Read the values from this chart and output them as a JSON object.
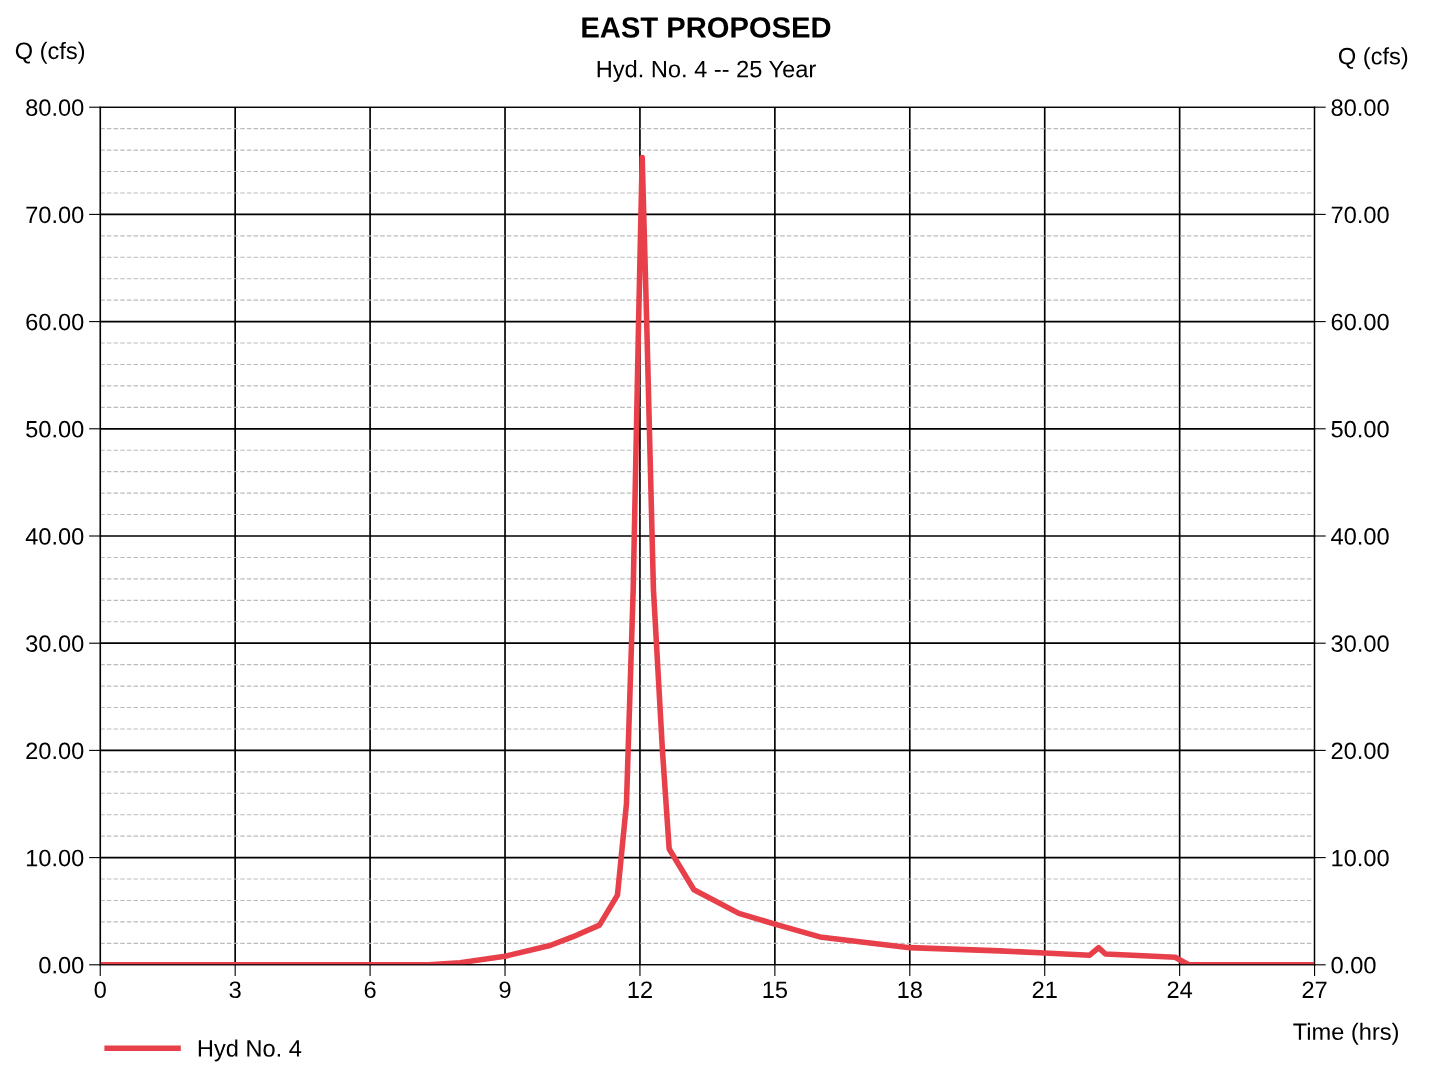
{
  "chart_data": {
    "type": "line",
    "title": "EAST PROPOSED",
    "subtitle": "Hyd. No. 4 -- 25 Year",
    "ylabel": "Q (cfs)",
    "y2label": "Q (cfs)",
    "xlabel": "Time (hrs)",
    "x": [
      0,
      7.3,
      8,
      9,
      10,
      10.5,
      11.1,
      11.5,
      11.7,
      11.85,
      11.97,
      12.05,
      12.15,
      12.3,
      12.5,
      12.65,
      13.2,
      14.2,
      15,
      16,
      18,
      20,
      21,
      22,
      22.2,
      22.35,
      23.9,
      24.2,
      27
    ],
    "series": [
      {
        "name": "Hyd No. 4",
        "color": "#e8404a",
        "values": [
          0,
          0,
          0.2,
          0.8,
          1.8,
          2.6,
          3.7,
          6.5,
          15,
          35,
          60,
          75.3,
          60,
          35,
          20,
          10.8,
          7.0,
          4.8,
          3.8,
          2.6,
          1.6,
          1.3,
          1.1,
          0.9,
          1.6,
          1.0,
          0.7,
          0,
          0
        ]
      }
    ],
    "xlim": [
      0,
      27
    ],
    "xticks": [
      0,
      3,
      6,
      9,
      12,
      15,
      18,
      21,
      24,
      27
    ],
    "ylim": [
      0,
      80
    ],
    "yticks": [
      {
        "value": 0,
        "label": "0.00"
      },
      {
        "value": 10,
        "label": "10.00"
      },
      {
        "value": 20,
        "label": "20.00"
      },
      {
        "value": 30,
        "label": "30.00"
      },
      {
        "value": 40,
        "label": "40.00"
      },
      {
        "value": 50,
        "label": "50.00"
      },
      {
        "value": 60,
        "label": "60.00"
      },
      {
        "value": 70,
        "label": "70.00"
      },
      {
        "value": 80,
        "label": "80.00"
      }
    ],
    "y2lim": [
      0,
      80
    ],
    "y2ticks": [
      {
        "value": 0,
        "label": "0.00"
      },
      {
        "value": 10,
        "label": "10.00"
      },
      {
        "value": 20,
        "label": "20.00"
      },
      {
        "value": 30,
        "label": "30.00"
      },
      {
        "value": 40,
        "label": "40.00"
      },
      {
        "value": 50,
        "label": "50.00"
      },
      {
        "value": 60,
        "label": "60.00"
      },
      {
        "value": 70,
        "label": "70.00"
      },
      {
        "value": 80,
        "label": "80.00"
      }
    ],
    "grid": true,
    "legend": "bottom left",
    "line_style": "solid",
    "marker": "none"
  }
}
